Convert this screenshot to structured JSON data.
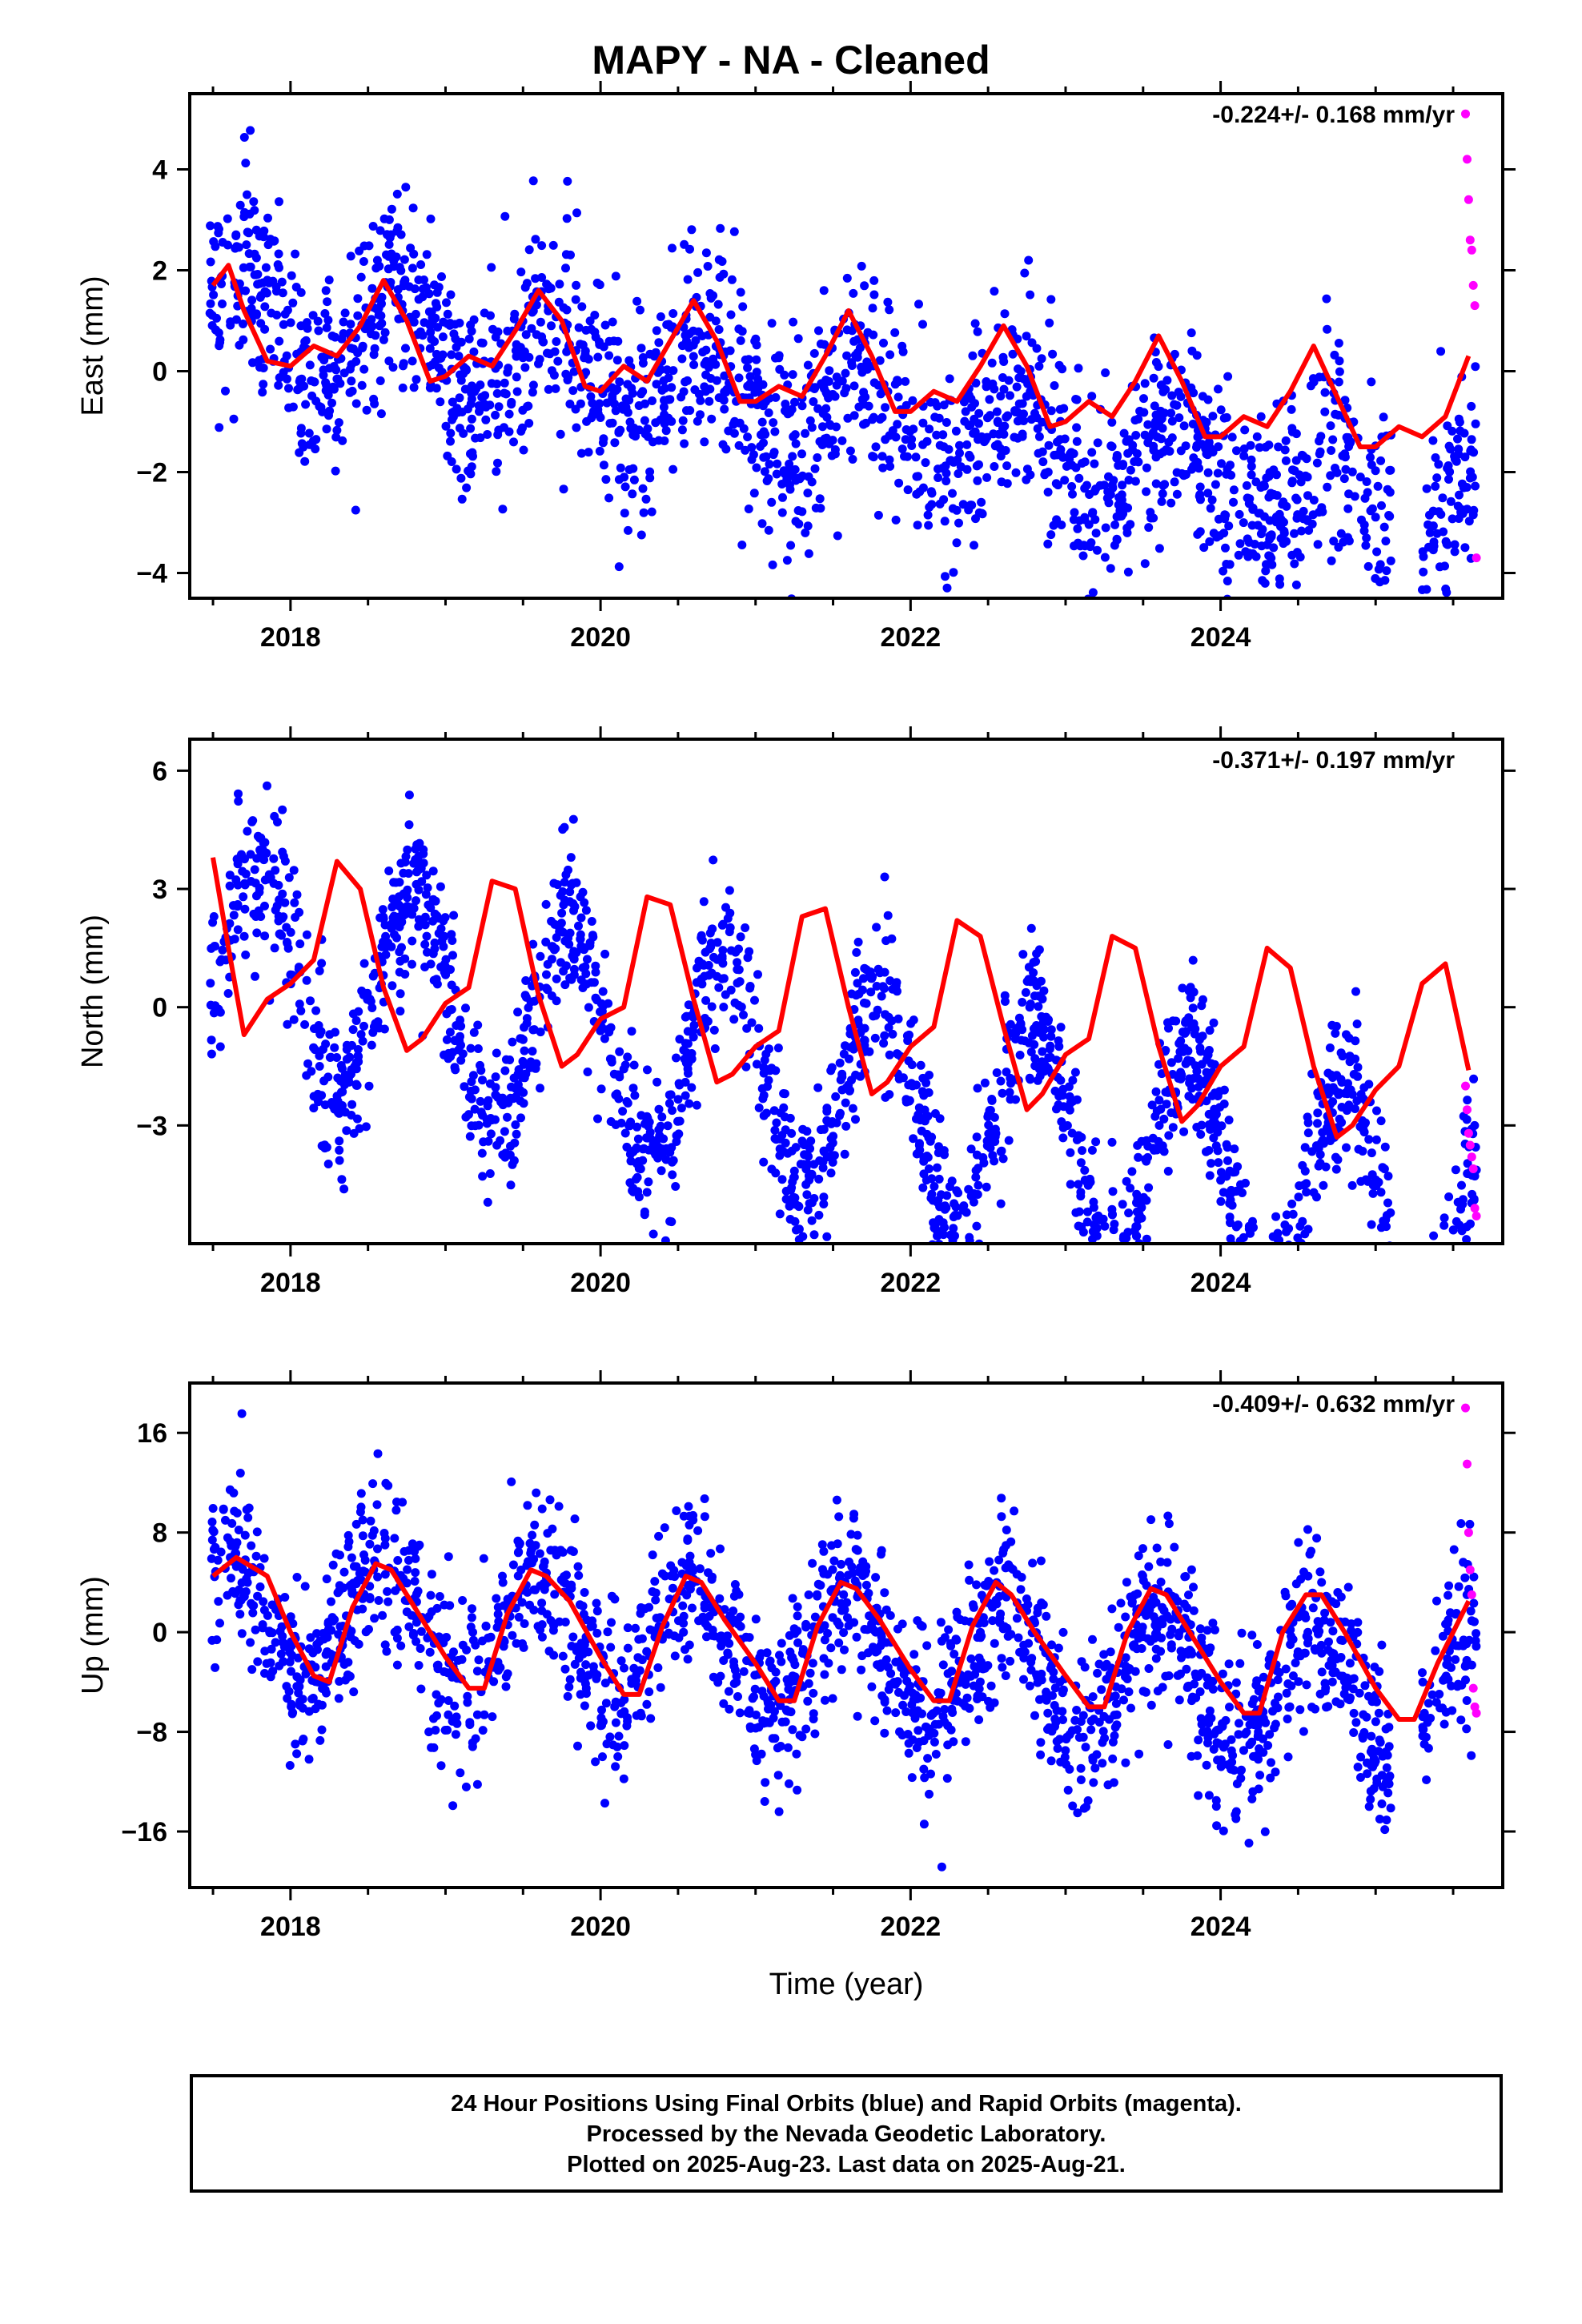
{
  "title": "MAPY  - NA - Cleaned",
  "xlabel": "Time (year)",
  "footer": {
    "line1": "24 Hour Positions Using Final Orbits (blue) and Rapid Orbits (magenta).",
    "line2": "Processed by the Nevada Geodetic Laboratory.",
    "line3": "Plotted on 2025-Aug-23. Last data on 2025-Aug-21."
  },
  "colors": {
    "final_orbits": "#0000ff",
    "rapid_orbits": "#ff00ff",
    "model": "#ff0000",
    "frame": "#000000"
  },
  "chart_data": [
    {
      "type": "scatter",
      "ylabel": "East (mm)",
      "rate": "-0.224+/- 0.168 mm/yr",
      "xlim": [
        2017.35,
        2025.82
      ],
      "ylim": [
        -4.5,
        5.5
      ],
      "x_ticks": [
        2018,
        2020,
        2022,
        2024
      ],
      "y_ticks": [
        -4,
        -2,
        0,
        2,
        4
      ],
      "y_tick_labels": [
        "−4",
        "−2",
        "0",
        "2",
        "4"
      ],
      "series": [
        {
          "name": "Final Orbits",
          "color": "#0000ff",
          "n_points": 2000,
          "trend_mm_per_yr": -0.224,
          "annual_amp": 0.9,
          "annual_phase": 0.55,
          "noise": 1.0,
          "offset": 1.2
        },
        {
          "name": "Rapid Orbits",
          "color": "#ff00ff",
          "x": [
            2025.58,
            2025.59,
            2025.6,
            2025.61,
            2025.62,
            2025.63,
            2025.64,
            2025.65
          ],
          "y": [
            5.1,
            4.2,
            3.4,
            2.6,
            2.4,
            1.7,
            1.3,
            -3.7
          ]
        }
      ],
      "model": {
        "name": "Model",
        "color": "#ff0000",
        "x": [
          2017.5,
          2017.6,
          2017.7,
          2017.85,
          2018.0,
          2018.15,
          2018.3,
          2018.45,
          2018.6,
          2018.75,
          2018.9,
          2019.0,
          2019.15,
          2019.3,
          2019.45,
          2019.6,
          2019.75,
          2019.9,
          2020.0,
          2020.15,
          2020.3,
          2020.45,
          2020.6,
          2020.75,
          2020.9,
          2021.0,
          2021.15,
          2021.3,
          2021.45,
          2021.6,
          2021.75,
          2021.9,
          2022.0,
          2022.15,
          2022.3,
          2022.45,
          2022.6,
          2022.75,
          2022.9,
          2023.0,
          2023.15,
          2023.3,
          2023.45,
          2023.6,
          2023.75,
          2023.9,
          2024.0,
          2024.15,
          2024.3,
          2024.45,
          2024.6,
          2024.75,
          2024.9,
          2025.0,
          2025.15,
          2025.3,
          2025.45,
          2025.6
        ],
        "y": [
          1.7,
          2.1,
          1.2,
          0.2,
          0.1,
          0.5,
          0.3,
          0.9,
          1.8,
          1.0,
          -0.2,
          -0.1,
          0.3,
          0.1,
          0.8,
          1.6,
          1.0,
          -0.3,
          -0.4,
          0.1,
          -0.2,
          0.6,
          1.4,
          0.6,
          -0.6,
          -0.6,
          -0.3,
          -0.5,
          0.3,
          1.2,
          0.3,
          -0.8,
          -0.8,
          -0.4,
          -0.6,
          0.1,
          0.9,
          0.1,
          -1.1,
          -1.0,
          -0.6,
          -0.9,
          -0.2,
          0.7,
          -0.2,
          -1.3,
          -1.3,
          -0.9,
          -1.1,
          -0.4,
          0.5,
          -0.5,
          -1.5,
          -1.5,
          -1.1,
          -1.3,
          -0.9,
          0.3
        ]
      }
    },
    {
      "type": "scatter",
      "ylabel": "North (mm)",
      "rate": "-0.371+/- 0.197 mm/yr",
      "xlim": [
        2017.35,
        2025.82
      ],
      "ylim": [
        -6.0,
        6.8
      ],
      "x_ticks": [
        2018,
        2020,
        2022,
        2024
      ],
      "y_ticks": [
        -3,
        0,
        3,
        6
      ],
      "y_tick_labels": [
        "−3",
        "0",
        "3",
        "6"
      ],
      "series": [
        {
          "name": "Final Orbits",
          "color": "#0000ff",
          "n_points": 2000,
          "trend_mm_per_yr": -0.371,
          "annual_amp": 2.8,
          "annual_phase": 0.45,
          "noise": 1.0,
          "offset": 1.2
        },
        {
          "name": "Rapid Orbits",
          "color": "#ff00ff",
          "x": [
            2025.58,
            2025.59,
            2025.6,
            2025.61,
            2025.62,
            2025.63,
            2025.64,
            2025.65
          ],
          "y": [
            -2.0,
            -2.6,
            -3.2,
            -3.5,
            -3.8,
            -4.1,
            -5.1,
            -5.3
          ]
        }
      ],
      "model": {
        "name": "Model",
        "color": "#ff0000",
        "x": [
          2017.5,
          2017.6,
          2017.7,
          2017.85,
          2018.0,
          2018.15,
          2018.3,
          2018.45,
          2018.6,
          2018.75,
          2018.85,
          2019.0,
          2019.15,
          2019.3,
          2019.45,
          2019.6,
          2019.75,
          2019.85,
          2020.0,
          2020.15,
          2020.3,
          2020.45,
          2020.6,
          2020.75,
          2020.85,
          2021.0,
          2021.15,
          2021.3,
          2021.45,
          2021.6,
          2021.75,
          2021.85,
          2022.0,
          2022.15,
          2022.3,
          2022.45,
          2022.6,
          2022.75,
          2022.85,
          2023.0,
          2023.15,
          2023.3,
          2023.45,
          2023.6,
          2023.75,
          2023.85,
          2024.0,
          2024.15,
          2024.3,
          2024.45,
          2024.6,
          2024.75,
          2024.85,
          2025.0,
          2025.15,
          2025.3,
          2025.45,
          2025.6
        ],
        "y": [
          3.8,
          1.5,
          -0.7,
          0.2,
          0.6,
          1.2,
          3.7,
          3.0,
          0.5,
          -1.1,
          -0.8,
          0.1,
          0.5,
          3.2,
          3.0,
          0.3,
          -1.5,
          -1.2,
          -0.3,
          0.0,
          2.8,
          2.6,
          0.2,
          -1.9,
          -1.7,
          -1.0,
          -0.6,
          2.3,
          2.5,
          0.0,
          -2.2,
          -1.9,
          -1.0,
          -0.5,
          2.2,
          1.8,
          -0.5,
          -2.6,
          -2.2,
          -1.2,
          -0.8,
          1.8,
          1.5,
          -1.0,
          -2.9,
          -2.5,
          -1.5,
          -1.0,
          1.5,
          1.0,
          -1.5,
          -3.3,
          -3.0,
          -2.1,
          -1.5,
          0.6,
          1.1,
          -1.6
        ]
      }
    },
    {
      "type": "scatter",
      "ylabel": "Up (mm)",
      "rate": "-0.409+/- 0.632 mm/yr",
      "xlim": [
        2017.35,
        2025.82
      ],
      "ylim": [
        -20.5,
        20.0
      ],
      "x_ticks": [
        2018,
        2020,
        2022,
        2024
      ],
      "y_ticks": [
        -16,
        -8,
        0,
        8,
        16
      ],
      "y_tick_labels": [
        "−16",
        "−8",
        "0",
        "8",
        "16"
      ],
      "series": [
        {
          "name": "Final Orbits",
          "color": "#0000ff",
          "n_points": 2000,
          "trend_mm_per_yr": -0.409,
          "annual_amp": 5.0,
          "annual_phase": 0.65,
          "noise": 3.5,
          "offset": 2.0
        },
        {
          "name": "Rapid Orbits",
          "color": "#ff00ff",
          "x": [
            2025.58,
            2025.59,
            2025.6,
            2025.61,
            2025.62,
            2025.63,
            2025.64,
            2025.65
          ],
          "y": [
            18.0,
            13.5,
            8.0,
            5.0,
            3.0,
            -4.5,
            -6.0,
            -6.5
          ]
        }
      ],
      "model": {
        "name": "Model",
        "color": "#ff0000",
        "x": [
          2017.5,
          2017.65,
          2017.85,
          2018.0,
          2018.15,
          2018.25,
          2018.4,
          2018.55,
          2018.65,
          2018.8,
          2019.0,
          2019.15,
          2019.25,
          2019.4,
          2019.55,
          2019.65,
          2019.8,
          2020.0,
          2020.15,
          2020.25,
          2020.4,
          2020.55,
          2020.65,
          2020.8,
          2021.0,
          2021.15,
          2021.25,
          2021.4,
          2021.55,
          2021.65,
          2021.8,
          2022.0,
          2022.15,
          2022.25,
          2022.4,
          2022.55,
          2022.65,
          2022.8,
          2023.0,
          2023.15,
          2023.25,
          2023.4,
          2023.55,
          2023.65,
          2023.8,
          2024.0,
          2024.15,
          2024.25,
          2024.4,
          2024.55,
          2024.65,
          2024.8,
          2025.0,
          2025.15,
          2025.25,
          2025.4,
          2025.6
        ],
        "y": [
          4.5,
          6.0,
          4.5,
          0.0,
          -3.5,
          -4.0,
          2.0,
          5.5,
          5.0,
          2.0,
          -2.0,
          -4.5,
          -4.5,
          1.5,
          5.0,
          4.5,
          2.5,
          -2.0,
          -5.0,
          -5.0,
          0.5,
          4.5,
          4.0,
          1.0,
          -2.5,
          -5.5,
          -5.5,
          0.5,
          4.0,
          3.5,
          1.0,
          -3.0,
          -5.5,
          -5.5,
          0.5,
          4.0,
          3.0,
          0.0,
          -3.5,
          -6.0,
          -6.0,
          0.0,
          3.5,
          3.0,
          0.0,
          -4.0,
          -6.5,
          -6.5,
          0.0,
          3.0,
          3.0,
          0.0,
          -4.5,
          -7.0,
          -7.0,
          -2.5,
          2.5
        ]
      }
    }
  ]
}
